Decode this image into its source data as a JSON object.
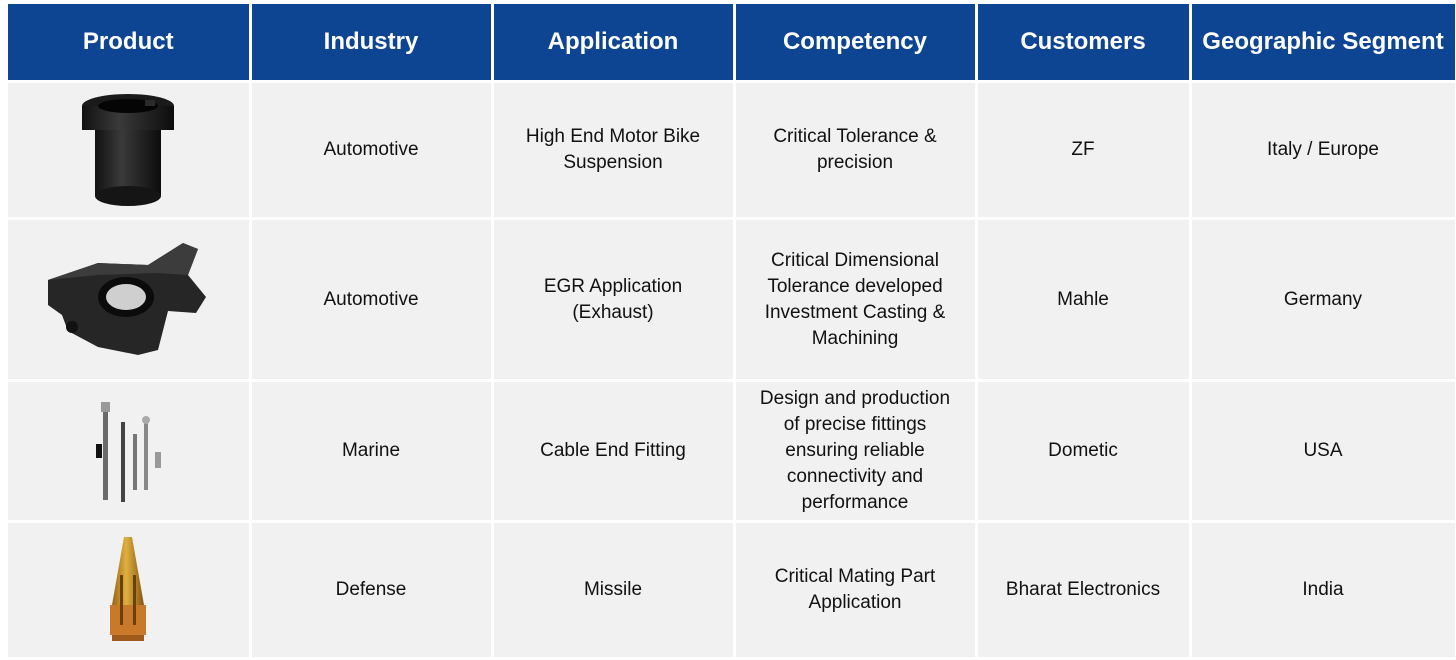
{
  "headers": [
    "Product",
    "Industry",
    "Application",
    "Competency",
    "Customers",
    "Geographic Segment"
  ],
  "rows": [
    {
      "product_icon": "suspension-bushing-image",
      "industry": "Automotive",
      "application": "High End Motor Bike\nSuspension",
      "competency": "Critical Tolerance &\nprecision",
      "customer": "ZF",
      "geography": "Italy / Europe"
    },
    {
      "product_icon": "egr-casting-image",
      "industry": "Automotive",
      "application": "EGR Application\n(Exhaust)",
      "competency": "Critical Dimensional\nTolerance developed\nInvestment Casting &\nMachining",
      "customer": "Mahle",
      "geography": "Germany"
    },
    {
      "product_icon": "cable-end-fitting-image",
      "industry": "Marine",
      "application": "Cable End Fitting",
      "competency": "Design and production\nof precise fittings\nensuring reliable\nconnectivity and\nperformance",
      "customer": "Dometic",
      "geography": "USA"
    },
    {
      "product_icon": "missile-part-image",
      "industry": "Defense",
      "application": "Missile",
      "competency": "Critical Mating Part\nApplication",
      "customer": "Bharat Electronics",
      "geography": "India"
    }
  ]
}
